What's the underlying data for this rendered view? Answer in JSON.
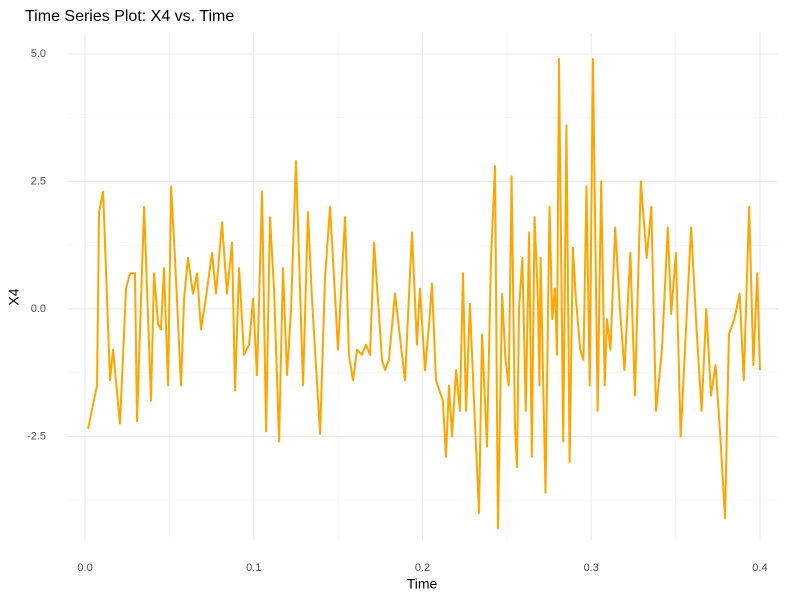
{
  "chart_data": {
    "type": "line",
    "title": "Time Series Plot: X4 vs. Time",
    "x_label": "Time",
    "y_label": "X4",
    "x": [
      0.0018,
      0.0071,
      0.0083,
      0.0107,
      0.0148,
      0.0166,
      0.0207,
      0.0243,
      0.0267,
      0.0296,
      0.0308,
      0.035,
      0.0391,
      0.0409,
      0.0433,
      0.045,
      0.0468,
      0.0492,
      0.051,
      0.0533,
      0.0569,
      0.0587,
      0.061,
      0.064,
      0.0664,
      0.0687,
      0.0711,
      0.0753,
      0.0776,
      0.0812,
      0.0841,
      0.0871,
      0.0889,
      0.0913,
      0.0942,
      0.0972,
      0.0996,
      0.1019,
      0.1049,
      0.1073,
      0.1096,
      0.112,
      0.115,
      0.1173,
      0.1197,
      0.1221,
      0.125,
      0.1292,
      0.1321,
      0.1345,
      0.1363,
      0.1393,
      0.1422,
      0.1452,
      0.1481,
      0.1499,
      0.1541,
      0.1564,
      0.1588,
      0.1612,
      0.1641,
      0.1665,
      0.1689,
      0.1713,
      0.176,
      0.1778,
      0.1801,
      0.1837,
      0.1896,
      0.1938,
      0.1967,
      0.1985,
      0.2015,
      0.2039,
      0.2056,
      0.208,
      0.2121,
      0.2139,
      0.2157,
      0.2175,
      0.2199,
      0.2222,
      0.224,
      0.2258,
      0.2281,
      0.2305,
      0.2335,
      0.2353,
      0.2382,
      0.2406,
      0.243,
      0.2447,
      0.2472,
      0.2492,
      0.2511,
      0.2528,
      0.2548,
      0.256,
      0.2572,
      0.2592,
      0.2612,
      0.2632,
      0.2648,
      0.2664,
      0.2684,
      0.2693,
      0.27,
      0.2729,
      0.2753,
      0.2769,
      0.2785,
      0.2797,
      0.2809,
      0.2834,
      0.2853,
      0.2872,
      0.2891,
      0.2909,
      0.2935,
      0.2954,
      0.2972,
      0.2991,
      0.301,
      0.3038,
      0.3059,
      0.308,
      0.3093,
      0.3114,
      0.3142,
      0.317,
      0.3197,
      0.3232,
      0.3259,
      0.3294,
      0.3329,
      0.3356,
      0.3384,
      0.3419,
      0.3454,
      0.3474,
      0.3502,
      0.353,
      0.3557,
      0.3592,
      0.3626,
      0.3654,
      0.3682,
      0.371,
      0.3737,
      0.3765,
      0.3793,
      0.3816,
      0.3848,
      0.388,
      0.3904,
      0.3936,
      0.3961,
      0.3984,
      0.4
    ],
    "series": [
      {
        "name": "X4",
        "color": "#FFA500",
        "values": [
          -2.35,
          -1.5,
          1.9,
          2.3,
          -1.4,
          -0.8,
          -2.25,
          0.4,
          0.7,
          0.7,
          -2.2,
          2.0,
          -1.8,
          0.7,
          -0.3,
          -0.4,
          0.8,
          -1.5,
          2.4,
          1.0,
          -1.5,
          0.2,
          1.0,
          0.3,
          0.7,
          -0.4,
          0.1,
          1.1,
          0.3,
          1.7,
          0.3,
          1.3,
          -1.6,
          0.8,
          -0.9,
          -0.7,
          0.2,
          -1.3,
          2.3,
          -2.4,
          1.8,
          0.4,
          -2.6,
          0.8,
          -1.3,
          0.0,
          2.9,
          -1.5,
          1.9,
          0.2,
          -0.8,
          -2.45,
          0.6,
          2.0,
          0.3,
          -0.8,
          1.8,
          -0.9,
          -1.4,
          -0.8,
          -0.9,
          -0.7,
          -0.9,
          1.3,
          -1.0,
          -1.2,
          -1.0,
          0.3,
          -1.4,
          1.5,
          -0.7,
          0.4,
          -1.2,
          -0.3,
          0.5,
          -1.4,
          -1.8,
          -2.9,
          -1.5,
          -2.5,
          -1.2,
          -2.0,
          0.7,
          -2.0,
          0.1,
          -1.8,
          -4.0,
          -0.5,
          -2.7,
          1.0,
          2.8,
          -4.3,
          0.3,
          -1.0,
          -1.5,
          2.6,
          -2.3,
          -3.1,
          0.0,
          1.0,
          -2.0,
          1.5,
          -2.9,
          1.8,
          0.2,
          -1.5,
          1.0,
          -3.6,
          2.0,
          -0.2,
          0.4,
          -0.9,
          4.9,
          -2.6,
          3.6,
          -3.0,
          1.2,
          0.2,
          -0.8,
          -1.0,
          2.4,
          -1.5,
          4.9,
          -2.0,
          2.5,
          -1.5,
          -0.2,
          -0.8,
          1.6,
          0.0,
          -1.2,
          1.1,
          -1.7,
          2.5,
          1.0,
          2.0,
          -2.0,
          -0.8,
          1.6,
          -0.1,
          1.1,
          -2.5,
          -0.7,
          1.6,
          -0.5,
          -2.0,
          0.0,
          -1.7,
          -1.1,
          -2.5,
          -4.1,
          -0.5,
          -0.2,
          0.3,
          -1.4,
          2.0,
          -1.1,
          0.7,
          -1.2
        ]
      }
    ],
    "xlim": [
      -0.0101,
      0.4107
    ],
    "ylim": [
      -4.53,
      5.41
    ],
    "xticks": [
      {
        "value": 0,
        "label": "0.0"
      },
      0.1,
      0.2,
      0.3,
      0.4
    ],
    "yticks": [
      -2.5,
      {
        "value": 0,
        "label": "0.0"
      },
      2.5,
      {
        "value": 5,
        "label": "5.0"
      }
    ],
    "grid": true
  }
}
